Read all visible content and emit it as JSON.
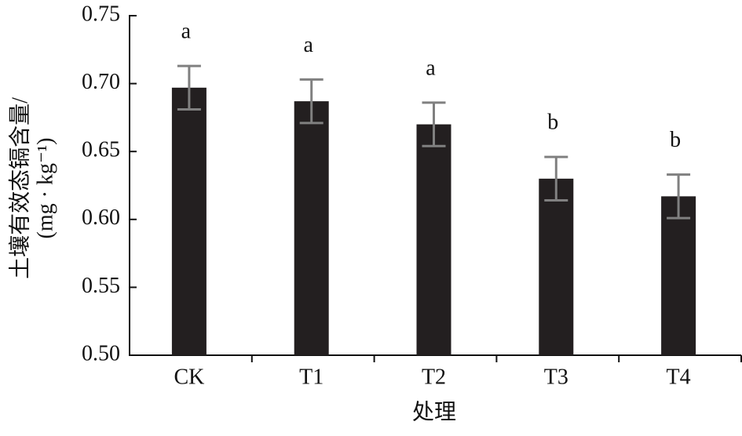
{
  "chart_data": {
    "type": "bar",
    "categories": [
      "CK",
      "T1",
      "T2",
      "T3",
      "T4"
    ],
    "values": [
      0.697,
      0.687,
      0.67,
      0.63,
      0.617
    ],
    "errors": [
      0.016,
      0.016,
      0.016,
      0.016,
      0.016
    ],
    "letters": [
      "a",
      "a",
      "a",
      "b",
      "b"
    ],
    "color": "#231f20",
    "error_color": "#808080",
    "xlabel": "处理",
    "ylabel": [
      "土壤有效态镉含量/",
      "(mg · kg⁻¹)"
    ],
    "ylim": [
      0.5,
      0.75
    ],
    "yticks": [
      {
        "value": 0.5,
        "label": "0.50"
      },
      0.55,
      {
        "value": 0.6,
        "label": "0.60"
      },
      0.65,
      {
        "value": 0.7,
        "label": "0.70"
      },
      0.75
    ],
    "grid": false
  }
}
